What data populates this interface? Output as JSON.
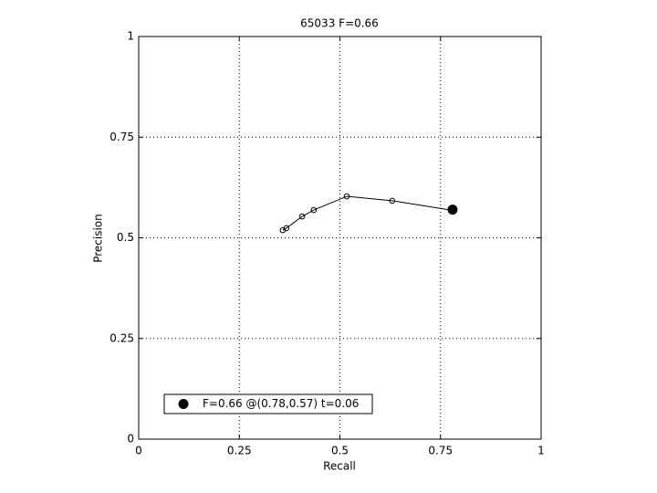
{
  "chart_data": {
    "type": "line",
    "title": "65033 F=0.66",
    "xlabel": "Recall",
    "ylabel": "Precision",
    "xlim": [
      0,
      1
    ],
    "ylim": [
      0,
      1
    ],
    "xticks": [
      0,
      0.25,
      0.5,
      0.75,
      1
    ],
    "yticks": [
      0,
      0.25,
      0.5,
      0.75,
      1
    ],
    "grid": true,
    "legend": "lower left",
    "series": [
      {
        "color": "#000000",
        "marker": "open-circle",
        "x": [
          0.358,
          0.367,
          0.406,
          0.435,
          0.517,
          0.63,
          0.776
        ],
        "values": [
          0.519,
          0.524,
          0.553,
          0.569,
          0.603,
          0.592,
          0.569
        ]
      },
      {
        "name": "F=0.66 @(0.78,0.57) t=0.06",
        "color": "#000000",
        "marker": "filled-circle",
        "x": [
          0.78
        ],
        "values": [
          0.57
        ]
      }
    ]
  }
}
